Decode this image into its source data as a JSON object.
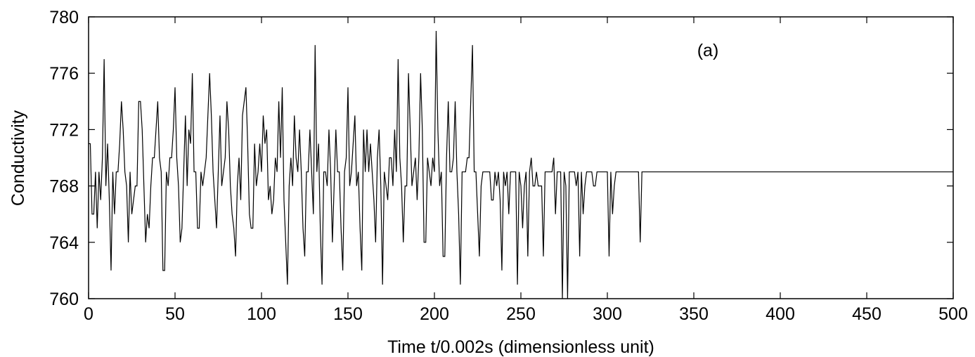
{
  "chart_data": {
    "type": "line",
    "xlabel": "Time t/0.002s (dimensionless unit)",
    "ylabel": "Conductivity",
    "annotation": "(a)",
    "xlim": [
      0,
      500
    ],
    "ylim": [
      760,
      780
    ],
    "x_ticks": [
      0,
      50,
      100,
      150,
      200,
      250,
      300,
      350,
      400,
      450,
      500
    ],
    "y_ticks": [
      760,
      764,
      768,
      772,
      776,
      780
    ],
    "x_tick_labels": [
      "0",
      "50",
      "100",
      "150",
      "200",
      "250",
      "300",
      "350",
      "400",
      "450",
      "500"
    ],
    "y_tick_labels": [
      "760",
      "764",
      "768",
      "772",
      "776",
      "780"
    ],
    "grid": false,
    "line_color": "#000000",
    "x_start": 0,
    "x_step": 1,
    "values": [
      771,
      771,
      766,
      766,
      769,
      765,
      769,
      767,
      770,
      777,
      768,
      771,
      767,
      762,
      769,
      766,
      769,
      769,
      771,
      774,
      772,
      769,
      768,
      764,
      769,
      766,
      767,
      768,
      768,
      774,
      774,
      772,
      768,
      764,
      766,
      765,
      768,
      770,
      770,
      772,
      774,
      770,
      769,
      762,
      762,
      769,
      768,
      770,
      770,
      772,
      775,
      770,
      768,
      764,
      765,
      769,
      773,
      768,
      772,
      771,
      776,
      769,
      769,
      765,
      765,
      769,
      768,
      769,
      770,
      773,
      776,
      773,
      769,
      767,
      765,
      769,
      773,
      768,
      769,
      770,
      774,
      772,
      768,
      766,
      765,
      763,
      768,
      770,
      767,
      773,
      774,
      775,
      771,
      766,
      765,
      765,
      771,
      768,
      769,
      771,
      769,
      773,
      771,
      772,
      767,
      768,
      766,
      767,
      770,
      769,
      774,
      770,
      775,
      767,
      764,
      761,
      768,
      770,
      768,
      773,
      770,
      769,
      772,
      769,
      765,
      763,
      769,
      769,
      772,
      769,
      766,
      778,
      769,
      771,
      765,
      761,
      769,
      769,
      768,
      772,
      769,
      764,
      768,
      772,
      769,
      769,
      765,
      762,
      769,
      770,
      775,
      768,
      769,
      771,
      773,
      768,
      769,
      765,
      762,
      772,
      769,
      772,
      769,
      771,
      769,
      767,
      764,
      770,
      772,
      768,
      761,
      769,
      768,
      767,
      770,
      770,
      768,
      772,
      769,
      777,
      770,
      768,
      764,
      768,
      768,
      776,
      772,
      768,
      769,
      770,
      767,
      770,
      776,
      772,
      764,
      764,
      770,
      769,
      768,
      770,
      769,
      779,
      772,
      768,
      769,
      763,
      763,
      770,
      774,
      769,
      769,
      770,
      774,
      769,
      766,
      761,
      769,
      769,
      769,
      770,
      770,
      774,
      778,
      769,
      769,
      766,
      763,
      768,
      769,
      769,
      769,
      769,
      769,
      767,
      767,
      769,
      768,
      769,
      767,
      762,
      769,
      768,
      769,
      766,
      769,
      769,
      769,
      769,
      761,
      769,
      768,
      765,
      768,
      769,
      763,
      769,
      770,
      768,
      768,
      769,
      768,
      768,
      768,
      763,
      769,
      769,
      769,
      769,
      769,
      770,
      766,
      769,
      769,
      769,
      760,
      769,
      768,
      760,
      769,
      769,
      769,
      769,
      768,
      769,
      763,
      769,
      766,
      768,
      769,
      769,
      769,
      769,
      768,
      768,
      769,
      769,
      769,
      769,
      769,
      769,
      769,
      763,
      769,
      766,
      768,
      769,
      769,
      769,
      769,
      769,
      769,
      769,
      769,
      769,
      769,
      769,
      769,
      769,
      769,
      764,
      769,
      769,
      769,
      769,
      769,
      769,
      769,
      769,
      769,
      769,
      769,
      769,
      769,
      769,
      769,
      769,
      769,
      769,
      769,
      769,
      769,
      769,
      769,
      769,
      769,
      769,
      769,
      769,
      769,
      769,
      769,
      769,
      769,
      769,
      769,
      769,
      769,
      769,
      769,
      769,
      769,
      769,
      769,
      769,
      769,
      769,
      769,
      769,
      769,
      769,
      769,
      769,
      769,
      769,
      769,
      769,
      769,
      769,
      769,
      769,
      769,
      769,
      769,
      769,
      769,
      769,
      769,
      769,
      769,
      769,
      769,
      769,
      769,
      769,
      769,
      769,
      769,
      769,
      769,
      769,
      769,
      769,
      769,
      769,
      769,
      769,
      769,
      769,
      769,
      769,
      769,
      769,
      769,
      769,
      769,
      769,
      769,
      769,
      769,
      769,
      769,
      769,
      769,
      769,
      769,
      769,
      769,
      769,
      769,
      769,
      769,
      769,
      769,
      769,
      769,
      769,
      769,
      769,
      769,
      769,
      769,
      769,
      769,
      769,
      769,
      769,
      769,
      769,
      769,
      769,
      769,
      769,
      769,
      769,
      769,
      769,
      769,
      769,
      769,
      769,
      769,
      769,
      769,
      769,
      769,
      769,
      769,
      769,
      769,
      769,
      769,
      769,
      769,
      769,
      769,
      769,
      769,
      769,
      769,
      769,
      769,
      769,
      769,
      769,
      769,
      769,
      769,
      769,
      769,
      769,
      769,
      769,
      769,
      769,
      769,
      769,
      769,
      769,
      769,
      769,
      769
    ]
  }
}
